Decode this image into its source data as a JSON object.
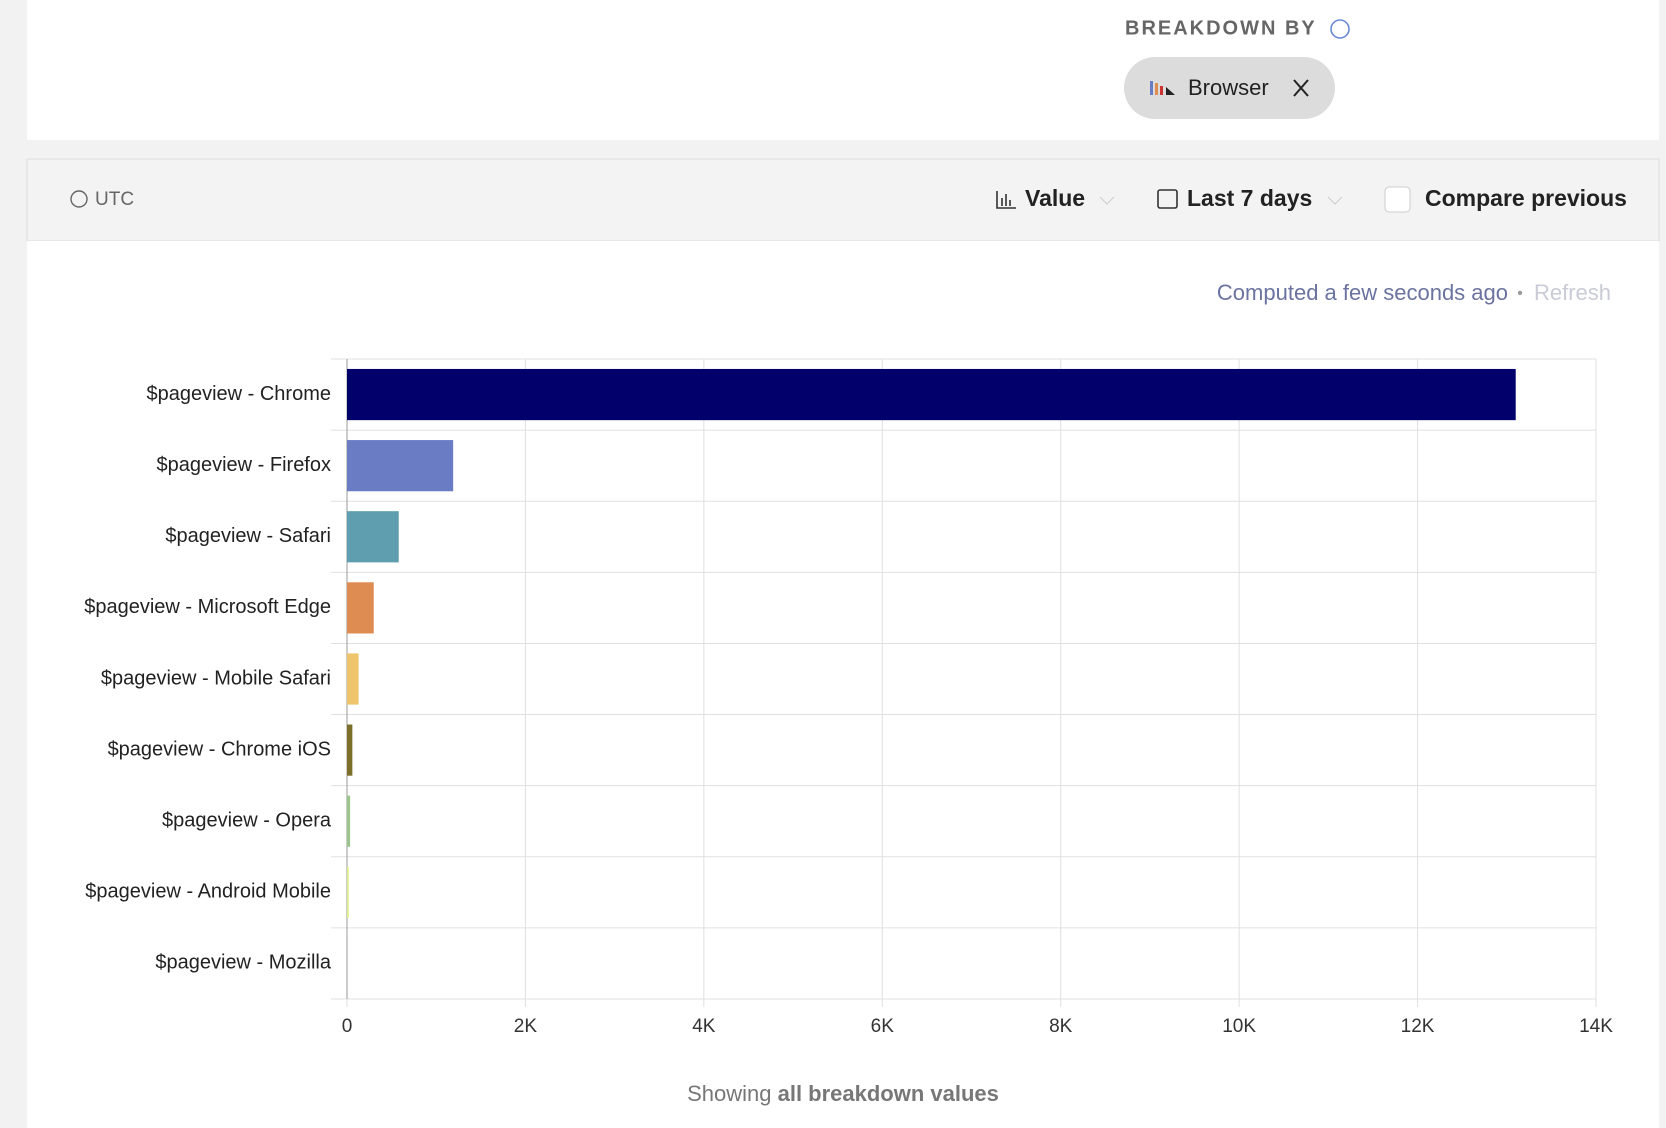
{
  "breakdown": {
    "label": "BREAKDOWN BY",
    "chip": "Browser"
  },
  "toolbar": {
    "timezone": "UTC",
    "display": "Value",
    "date_range": "Last 7 days",
    "compare": "Compare previous"
  },
  "status": {
    "computed": "Computed a few seconds ago",
    "separator": "•",
    "refresh": "Refresh"
  },
  "footer": {
    "prefix": "Showing",
    "emphasis": "all breakdown values"
  },
  "chart_data": {
    "type": "bar",
    "orientation": "horizontal",
    "categories": [
      "$pageview - Chrome",
      "$pageview - Firefox",
      "$pageview - Safari",
      "$pageview - Microsoft Edge",
      "$pageview - Mobile Safari",
      "$pageview - Chrome iOS",
      "$pageview - Opera",
      "$pageview - Android Mobile",
      "$pageview - Mozilla"
    ],
    "values": [
      13100,
      1190,
      580,
      300,
      130,
      60,
      35,
      20,
      1
    ],
    "colors": [
      "#02016b",
      "#6a7cc4",
      "#5f9eae",
      "#de8c52",
      "#eec56b",
      "#7b6f2a",
      "#9cc48f",
      "#dff08a",
      "#9a9a9a"
    ],
    "xlim": [
      0,
      14000
    ],
    "xticks": [
      0,
      {
        "value": 2000,
        "label": "2K"
      },
      {
        "value": 4000,
        "label": "4K"
      },
      {
        "value": 6000,
        "label": "6K"
      },
      {
        "value": 8000,
        "label": "8K"
      },
      {
        "value": 10000,
        "label": "10K"
      },
      {
        "value": 12000,
        "label": "12K"
      },
      {
        "value": 14000,
        "label": "14K"
      }
    ],
    "grid": true
  }
}
